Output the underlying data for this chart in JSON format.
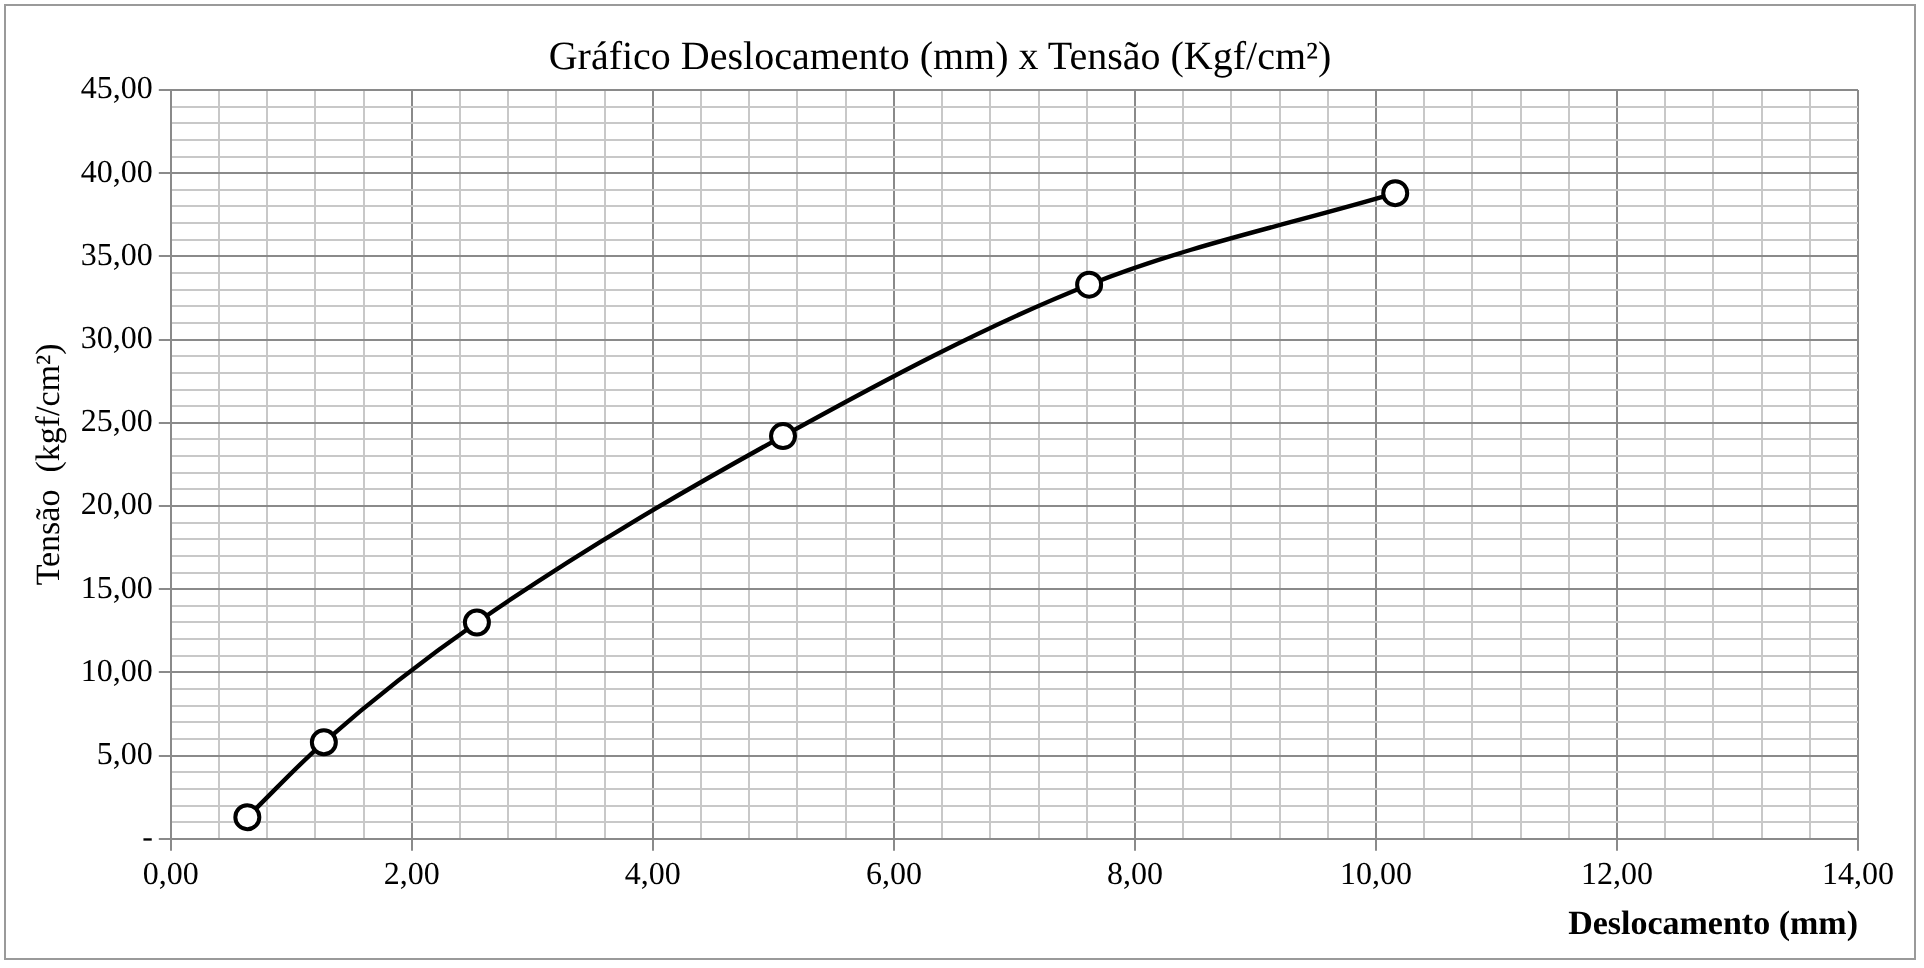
{
  "chart_data": {
    "type": "line",
    "title": "Gráfico Deslocamento (mm) x Tensão (Kgf/cm²)",
    "xlabel": "Deslocamento (mm)",
    "ylabel": "Tensão  (kgf/cm²)",
    "x": [
      0.635,
      1.27,
      2.54,
      5.08,
      7.62,
      10.16
    ],
    "series": [
      {
        "color": "#000000",
        "values": [
          1.3,
          5.8,
          13.0,
          24.2,
          33.3,
          38.8
        ]
      }
    ],
    "xlim": [
      0,
      14
    ],
    "ylim": [
      0,
      45
    ],
    "xticks": [
      {
        "value": 0,
        "label": "0,00"
      },
      {
        "value": 0.4,
        "label": null
      },
      {
        "value": 0.8,
        "label": null
      },
      {
        "value": 1.2,
        "label": null
      },
      {
        "value": 1.6,
        "label": null
      },
      {
        "value": 2,
        "label": "2,00"
      },
      {
        "value": 2.4,
        "label": null
      },
      {
        "value": 2.8,
        "label": null
      },
      {
        "value": 3.2,
        "label": null
      },
      {
        "value": 3.6,
        "label": null
      },
      {
        "value": 4,
        "label": "4,00"
      },
      {
        "value": 4.4,
        "label": null
      },
      {
        "value": 4.8,
        "label": null
      },
      {
        "value": 5.2,
        "label": null
      },
      {
        "value": 5.6,
        "label": null
      },
      {
        "value": 6,
        "label": "6,00"
      },
      {
        "value": 6.4,
        "label": null
      },
      {
        "value": 6.8,
        "label": null
      },
      {
        "value": 7.2,
        "label": null
      },
      {
        "value": 7.6,
        "label": null
      },
      {
        "value": 8,
        "label": "8,00"
      },
      {
        "value": 8.4,
        "label": null
      },
      {
        "value": 8.8,
        "label": null
      },
      {
        "value": 9.2,
        "label": null
      },
      {
        "value": 9.6,
        "label": null
      },
      {
        "value": 10,
        "label": "10,00"
      },
      {
        "value": 10.4,
        "label": null
      },
      {
        "value": 10.8,
        "label": null
      },
      {
        "value": 11.2,
        "label": null
      },
      {
        "value": 11.6,
        "label": null
      },
      {
        "value": 12,
        "label": "12,00"
      },
      {
        "value": 12.4,
        "label": null
      },
      {
        "value": 12.8,
        "label": null
      },
      {
        "value": 13.2,
        "label": null
      },
      {
        "value": 13.6,
        "label": null
      },
      {
        "value": 14,
        "label": "14,00"
      }
    ],
    "yticks": [
      {
        "value": 0,
        "label": "-"
      },
      {
        "value": 1,
        "label": null
      },
      {
        "value": 2,
        "label": null
      },
      {
        "value": 3,
        "label": null
      },
      {
        "value": 4,
        "label": null
      },
      {
        "value": 5,
        "label": "5,00"
      },
      {
        "value": 6,
        "label": null
      },
      {
        "value": 7,
        "label": null
      },
      {
        "value": 8,
        "label": null
      },
      {
        "value": 9,
        "label": null
      },
      {
        "value": 10,
        "label": "10,00"
      },
      {
        "value": 11,
        "label": null
      },
      {
        "value": 12,
        "label": null
      },
      {
        "value": 13,
        "label": null
      },
      {
        "value": 14,
        "label": null
      },
      {
        "value": 15,
        "label": "15,00"
      },
      {
        "value": 16,
        "label": null
      },
      {
        "value": 17,
        "label": null
      },
      {
        "value": 18,
        "label": null
      },
      {
        "value": 19,
        "label": null
      },
      {
        "value": 20,
        "label": "20,00"
      },
      {
        "value": 21,
        "label": null
      },
      {
        "value": 22,
        "label": null
      },
      {
        "value": 23,
        "label": null
      },
      {
        "value": 24,
        "label": null
      },
      {
        "value": 25,
        "label": "25,00"
      },
      {
        "value": 26,
        "label": null
      },
      {
        "value": 27,
        "label": null
      },
      {
        "value": 28,
        "label": null
      },
      {
        "value": 29,
        "label": null
      },
      {
        "value": 30,
        "label": "30,00"
      },
      {
        "value": 31,
        "label": null
      },
      {
        "value": 32,
        "label": null
      },
      {
        "value": 33,
        "label": null
      },
      {
        "value": 34,
        "label": null
      },
      {
        "value": 35,
        "label": "35,00"
      },
      {
        "value": 36,
        "label": null
      },
      {
        "value": 37,
        "label": null
      },
      {
        "value": 38,
        "label": null
      },
      {
        "value": 39,
        "label": null
      },
      {
        "value": 40,
        "label": "40,00"
      },
      {
        "value": 41,
        "label": null
      },
      {
        "value": 42,
        "label": null
      },
      {
        "value": 43,
        "label": null
      },
      {
        "value": 44,
        "label": null
      },
      {
        "value": 45,
        "label": "45,00"
      }
    ],
    "grid": true,
    "legend": false,
    "marker": "circle",
    "line_style": "solid"
  }
}
